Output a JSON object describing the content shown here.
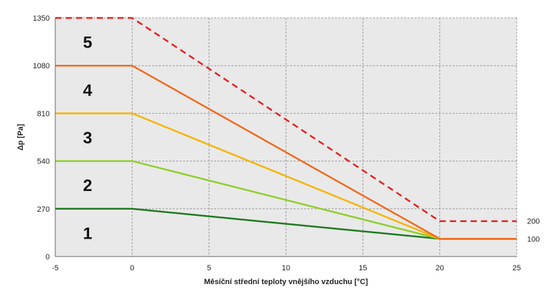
{
  "chart_data": {
    "type": "line",
    "xlabel": "Měsíční střední teploty vnějšího vzduchu [°C]",
    "ylabel": "Δp [Pa]",
    "xlim": [
      -5,
      25
    ],
    "ylim": [
      0,
      1350
    ],
    "xticks": [
      "-5",
      "0",
      "5",
      "10",
      "15",
      "20",
      "25"
    ],
    "yticks": [
      "0",
      "270",
      "540",
      "810",
      "1080",
      "1350"
    ],
    "grid": true,
    "series": [
      {
        "name": "1",
        "color": "#1e7a1e",
        "dash": false,
        "x": [
          -5,
          0,
          20,
          25
        ],
        "y": [
          270,
          270,
          100,
          100
        ]
      },
      {
        "name": "2",
        "color": "#8fcf2a",
        "dash": false,
        "x": [
          -5,
          0,
          20,
          25
        ],
        "y": [
          540,
          540,
          100,
          100
        ]
      },
      {
        "name": "3",
        "color": "#f5b400",
        "dash": false,
        "x": [
          -5,
          0,
          20,
          25
        ],
        "y": [
          810,
          810,
          100,
          100
        ]
      },
      {
        "name": "4",
        "color": "#f06a1e",
        "dash": false,
        "x": [
          -5,
          0,
          20,
          25
        ],
        "y": [
          1080,
          1080,
          100,
          100
        ]
      },
      {
        "name": "5",
        "color": "#e52222",
        "dash": true,
        "x": [
          -5,
          0,
          20,
          25
        ],
        "y": [
          1350,
          1350,
          200,
          200
        ]
      }
    ],
    "zone_labels": [
      {
        "text": "1",
        "x": -2.9,
        "y": 135
      },
      {
        "text": "2",
        "x": -2.9,
        "y": 405
      },
      {
        "text": "3",
        "x": -2.9,
        "y": 675
      },
      {
        "text": "4",
        "x": -2.9,
        "y": 945
      },
      {
        "text": "5",
        "x": -2.9,
        "y": 1215
      }
    ],
    "end_labels": [
      {
        "text": "200",
        "y": 200
      },
      {
        "text": "100",
        "y": 100
      }
    ]
  }
}
